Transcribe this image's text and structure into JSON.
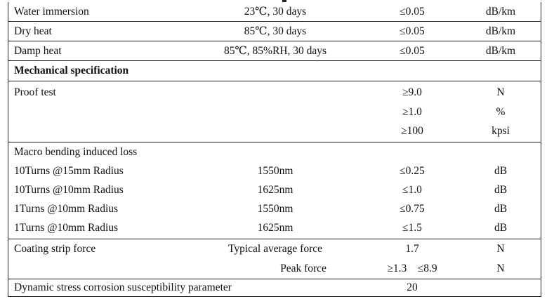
{
  "environment_rows": [
    {
      "name": "Water immersion",
      "condition": "23℃, 30 days",
      "value": "≤0.05",
      "unit": "dB/km"
    },
    {
      "name": "Dry heat",
      "condition": "85℃, 30 days",
      "value": "≤0.05",
      "unit": "dB/km"
    },
    {
      "name": "Damp heat",
      "condition": "85℃, 85%RH, 30 days",
      "value": "≤0.05",
      "unit": "dB/km"
    }
  ],
  "mechanical_header": "Mechanical specification",
  "proof_test": {
    "name": "Proof test",
    "lines": [
      {
        "value": "≥9.0",
        "unit": "N"
      },
      {
        "value": "≥1.0",
        "unit": "%"
      },
      {
        "value": "≥100",
        "unit": "kpsi"
      }
    ]
  },
  "macro_bending": {
    "name": "Macro bending induced loss",
    "lines": [
      {
        "name": "10Turns @15mm Radius",
        "condition": "1550nm",
        "value": "≤0.25",
        "unit": "dB"
      },
      {
        "name": "10Turns @10mm Radius",
        "condition": "1625nm",
        "value": "≤1.0",
        "unit": "dB"
      },
      {
        "name": "1Turns @10mm Radius",
        "condition": "1550nm",
        "value": "≤0.75",
        "unit": "dB"
      },
      {
        "name": "1Turns @10mm Radius",
        "condition": "1625nm",
        "value": "≤1.5",
        "unit": "dB"
      }
    ]
  },
  "coating_strip": {
    "name": "Coating strip force",
    "lines": [
      {
        "condition": "Typical average force",
        "value": "1.7",
        "unit": "N"
      },
      {
        "condition": "Peak force",
        "value": "≥1.3    ≤8.9",
        "unit": "N"
      }
    ]
  },
  "dynamic_stress": {
    "name": "Dynamic stress corrosion susceptibility parameter",
    "value": "20"
  }
}
